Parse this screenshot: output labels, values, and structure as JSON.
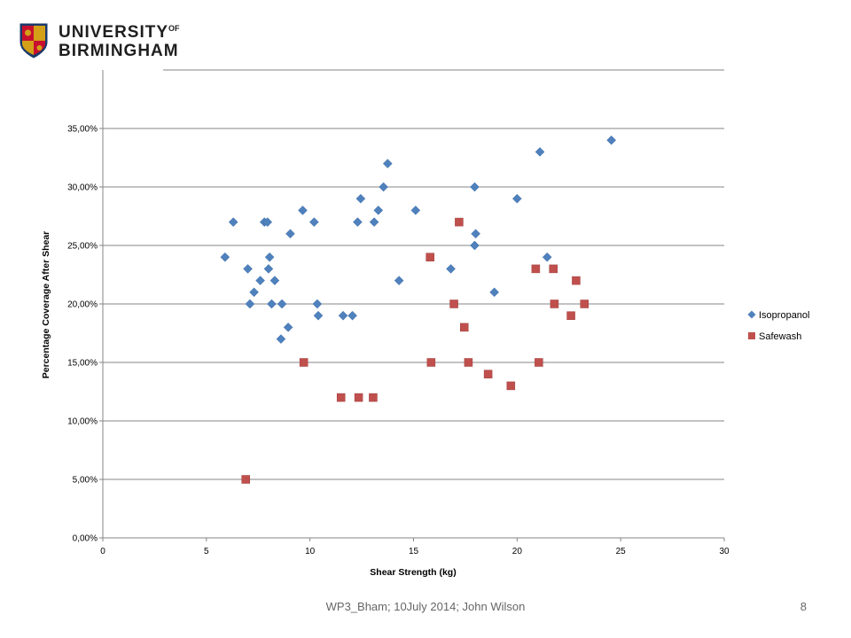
{
  "logo": {
    "line1": "UNIVERSITY",
    "line1_sup": "OF",
    "line2": "BIRMINGHAM"
  },
  "footer": {
    "text": "WP3_Bham; 10July 2014; John Wilson",
    "page_number": "8"
  },
  "colors": {
    "isopropanol": "#4F81BD",
    "safewash": "#C0504D",
    "gridline": "#868686",
    "brand_red": "#C8102E",
    "brand_navy": "#1B3A6B",
    "brand_gold": "#D4A017"
  },
  "chart_data": {
    "type": "scatter",
    "title": "",
    "xlabel": "Shear Strength (kg)",
    "ylabel": "Percentage Coverage After Shear",
    "xlim": [
      0,
      30
    ],
    "ylim": [
      0,
      0.4
    ],
    "x_ticks": [
      "0",
      "5",
      "10",
      "15",
      "20",
      "25",
      "30"
    ],
    "y_ticks": [
      "0,00%",
      "5,00%",
      "10,00%",
      "15,00%",
      "20,00%",
      "25,00%",
      "30,00%",
      "35,00%"
    ],
    "grid": "horizontal",
    "legend_position": "right",
    "series": [
      {
        "name": "Isopropanol",
        "marker": "diamond",
        "points": [
          [
            5.9,
            0.24
          ],
          [
            6.3,
            0.27
          ],
          [
            7.0,
            0.23
          ],
          [
            7.1,
            0.2
          ],
          [
            7.3,
            0.21
          ],
          [
            7.6,
            0.22
          ],
          [
            7.8,
            0.27
          ],
          [
            7.95,
            0.27
          ],
          [
            8.0,
            0.23
          ],
          [
            8.05,
            0.24
          ],
          [
            8.15,
            0.2
          ],
          [
            8.3,
            0.22
          ],
          [
            8.65,
            0.2
          ],
          [
            8.6,
            0.17
          ],
          [
            8.95,
            0.18
          ],
          [
            9.05,
            0.26
          ],
          [
            9.65,
            0.28
          ],
          [
            10.2,
            0.27
          ],
          [
            10.35,
            0.2
          ],
          [
            10.4,
            0.19
          ],
          [
            11.6,
            0.19
          ],
          [
            12.05,
            0.19
          ],
          [
            12.3,
            0.27
          ],
          [
            12.45,
            0.29
          ],
          [
            13.1,
            0.27
          ],
          [
            13.3,
            0.28
          ],
          [
            13.55,
            0.3
          ],
          [
            13.75,
            0.32
          ],
          [
            14.3,
            0.22
          ],
          [
            15.1,
            0.28
          ],
          [
            16.8,
            0.23
          ],
          [
            17.95,
            0.3
          ],
          [
            17.95,
            0.25
          ],
          [
            18.0,
            0.26
          ],
          [
            18.9,
            0.21
          ],
          [
            20.0,
            0.29
          ],
          [
            21.1,
            0.33
          ],
          [
            21.45,
            0.24
          ],
          [
            24.55,
            0.34
          ]
        ]
      },
      {
        "name": "Safewash",
        "marker": "square",
        "points": [
          [
            6.9,
            0.05
          ],
          [
            9.7,
            0.15
          ],
          [
            11.5,
            0.12
          ],
          [
            12.35,
            0.12
          ],
          [
            13.05,
            0.12
          ],
          [
            15.8,
            0.24
          ],
          [
            15.85,
            0.15
          ],
          [
            16.95,
            0.2
          ],
          [
            17.2,
            0.27
          ],
          [
            17.45,
            0.18
          ],
          [
            17.65,
            0.15
          ],
          [
            18.6,
            0.14
          ],
          [
            19.7,
            0.13
          ],
          [
            20.9,
            0.23
          ],
          [
            21.05,
            0.15
          ],
          [
            21.75,
            0.23
          ],
          [
            21.8,
            0.2
          ],
          [
            22.6,
            0.19
          ],
          [
            22.85,
            0.22
          ],
          [
            23.25,
            0.2
          ]
        ]
      }
    ]
  }
}
